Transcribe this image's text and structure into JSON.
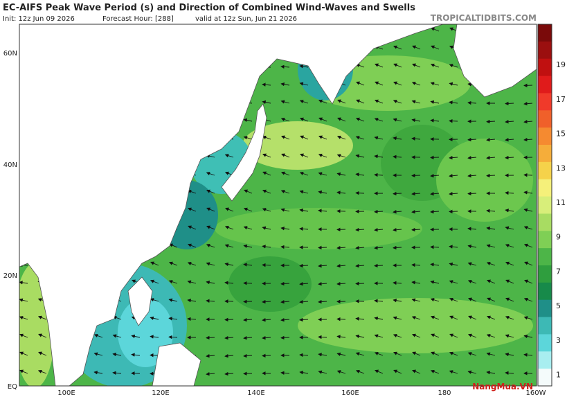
{
  "header": {
    "title": "EC-AIFS Peak Wave Period (s) and Direction of Combined Wind-Waves and Swells",
    "init": "Init: 12z Jun 09 2026",
    "forecast": "Forecast Hour: [288]",
    "valid": "valid at 12z Sun, Jun 21 2026",
    "source": "TROPICALTIDBITS.COM"
  },
  "axes": {
    "lat_labels": [
      "60N",
      "40N",
      "20N",
      "EQ"
    ],
    "lon_labels": [
      "100E",
      "120E",
      "140E",
      "160E",
      "180",
      "160W"
    ]
  },
  "colorbar": {
    "labels": [
      "19",
      "17",
      "15",
      "13",
      "11",
      "9",
      "7",
      "5",
      "3",
      "1"
    ]
  },
  "watermark": "NangMua.VN"
}
